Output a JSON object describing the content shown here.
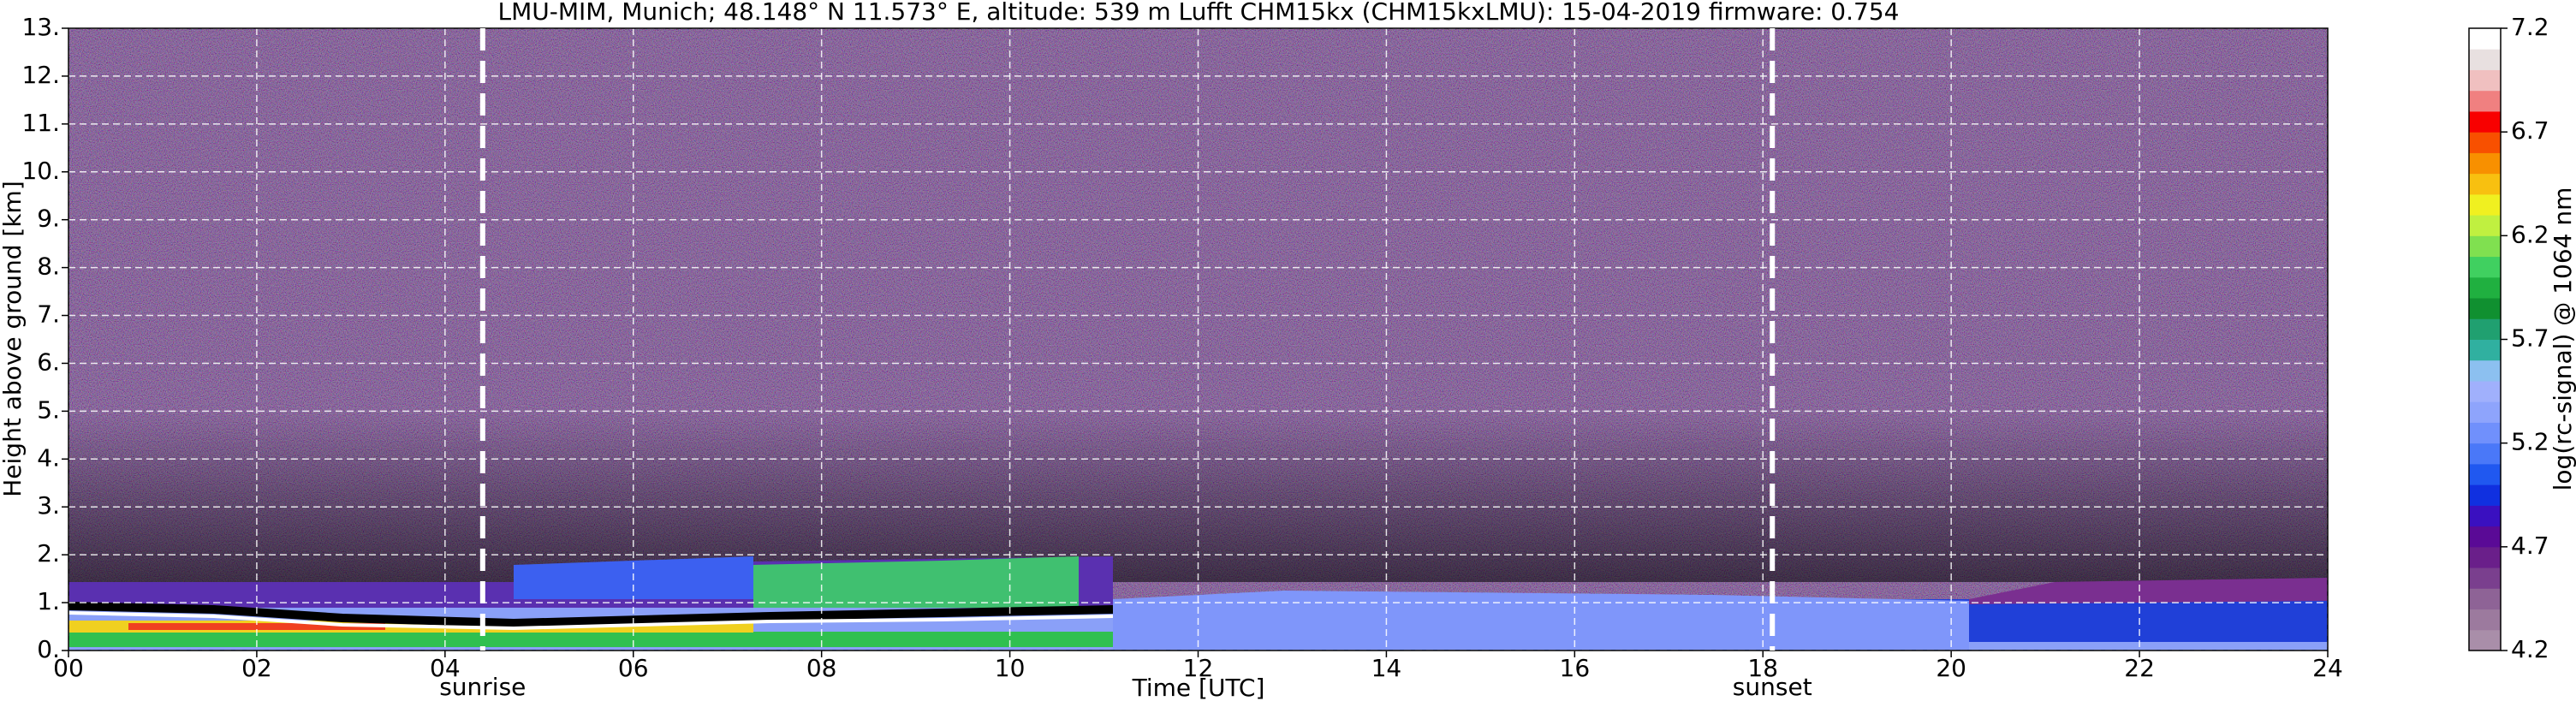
{
  "chart_data": {
    "type": "heatmap",
    "title": "LMU-MIM, Munich; 48.148° N 11.573° E, altitude: 539 m    Lufft CHM15kx (CHM15kxLMU): 15-04-2019    firmware: 0.754",
    "xlabel": "Time [UTC]",
    "ylabel": "Height above ground [km]",
    "xlim": [
      0,
      24
    ],
    "xticks": [
      {
        "value": 0,
        "label": "00"
      },
      {
        "value": 2,
        "label": "02"
      },
      {
        "value": 4,
        "label": "04"
      },
      {
        "value": 6,
        "label": "06"
      },
      {
        "value": 8,
        "label": "08"
      },
      10,
      12,
      14,
      16,
      18,
      20,
      22,
      24
    ],
    "ylim": [
      0,
      13
    ],
    "yticks": [
      {
        "value": 0,
        "label": "0."
      },
      {
        "value": 1,
        "label": "1."
      },
      {
        "value": 2,
        "label": "2."
      },
      {
        "value": 3,
        "label": "3."
      },
      {
        "value": 4,
        "label": "4."
      },
      {
        "value": 5,
        "label": "5."
      },
      {
        "value": 6,
        "label": "6."
      },
      {
        "value": 7,
        "label": "7."
      },
      {
        "value": 8,
        "label": "8."
      },
      {
        "value": 9,
        "label": "9."
      },
      {
        "value": 10,
        "label": "10."
      },
      {
        "value": 11,
        "label": "11."
      },
      {
        "value": 12,
        "label": "12."
      },
      {
        "value": 13,
        "label": "13."
      }
    ],
    "grid": true,
    "annotations": [
      {
        "text": "sunrise",
        "x": 4.4
      },
      {
        "text": "sunset",
        "x": 18.1
      }
    ],
    "colorbar": {
      "label": "log(rc-signal) @ 1064 nm",
      "clim": [
        4.2,
        7.2
      ],
      "ticks": [
        4.2,
        4.7,
        5.2,
        5.7,
        6.2,
        6.7,
        7.2
      ],
      "colors": [
        "#a98ea9",
        "#9c7a9e",
        "#8e6396",
        "#7a3f8e",
        "#6a1f8a",
        "#5a0a96",
        "#3a10c0",
        "#1030e0",
        "#2058f0",
        "#4a78f8",
        "#7090fc",
        "#8ea4fc",
        "#a0b0fc",
        "#8cc0f0",
        "#30b0a0",
        "#20a070",
        "#109030",
        "#20b040",
        "#40d060",
        "#80e050",
        "#c0f040",
        "#f0f020",
        "#f8c010",
        "#f89000",
        "#f85000",
        "#f80000",
        "#f08080",
        "#f0c0c0",
        "#e8e0e0",
        "#ffffff"
      ]
    }
  }
}
